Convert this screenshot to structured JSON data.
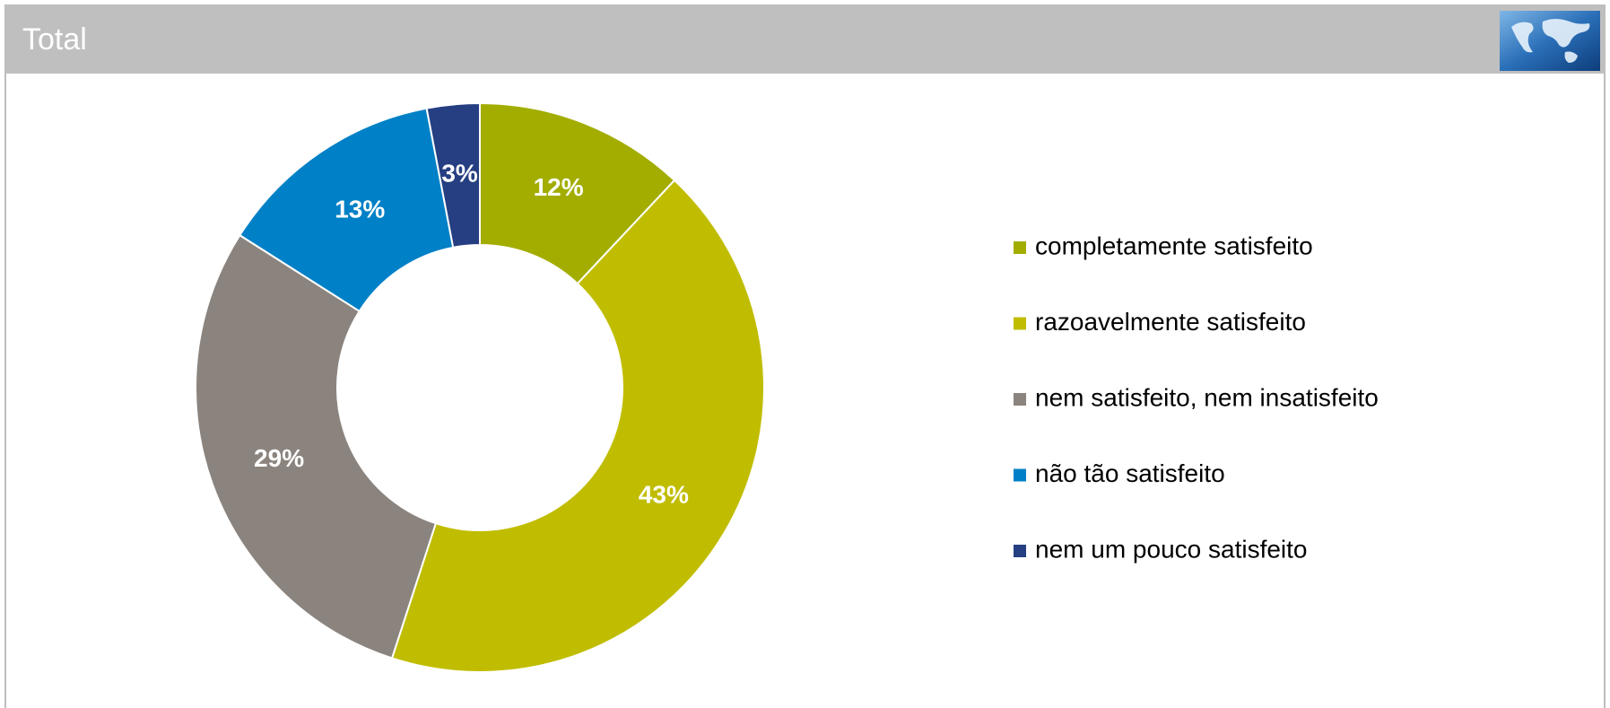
{
  "chart_data": {
    "type": "donut",
    "title": "Total",
    "categories": [
      "completamente satisfeito",
      "razoavelmente satisfeito",
      "nem satisfeito, nem insatisfeito",
      "não tão satisfeito",
      "nem um pouco satisfeito"
    ],
    "values": [
      12,
      43,
      29,
      13,
      3
    ],
    "value_labels": [
      "12%",
      "43%",
      "29%",
      "13%",
      "3%"
    ],
    "colors": [
      "#a2ad00",
      "#c0bd00",
      "#8b847e",
      "#0080c6",
      "#253f82"
    ],
    "legend": "right"
  }
}
